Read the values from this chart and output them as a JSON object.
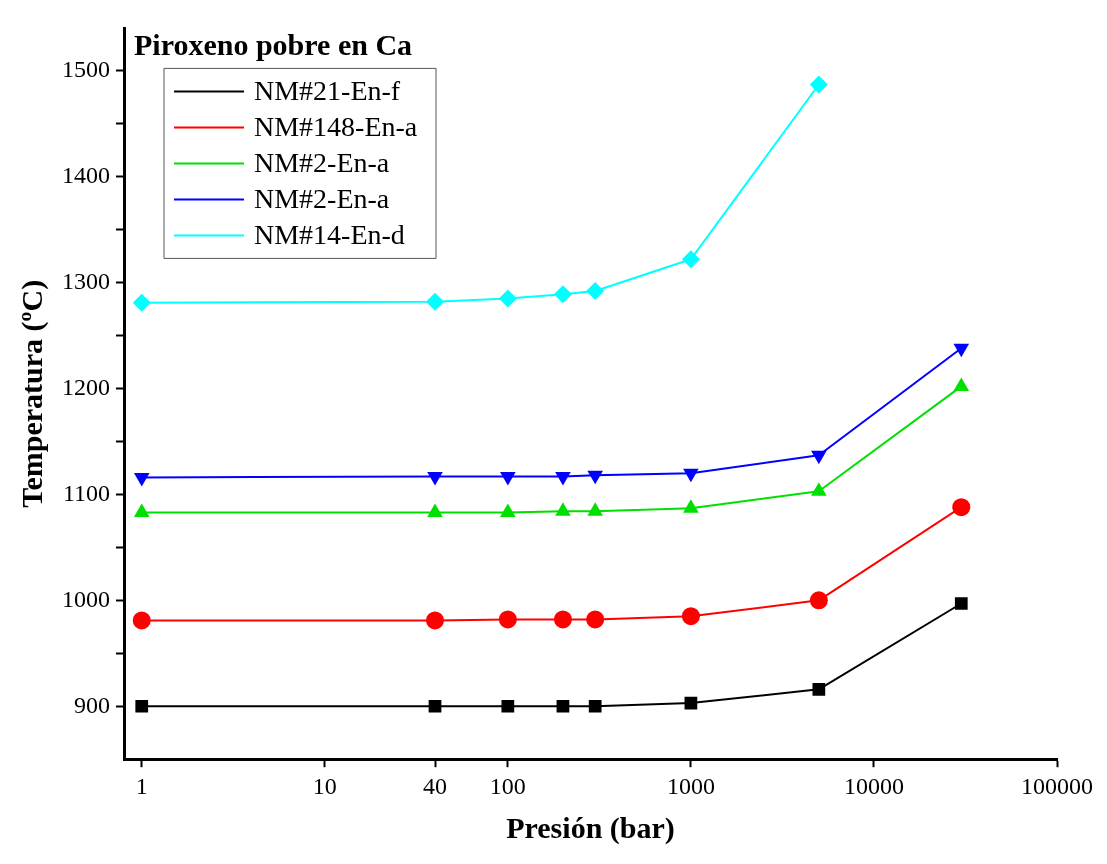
{
  "chart_data": {
    "type": "line",
    "title": "Piroxeno pobre en Ca",
    "xlabel": "Presión (bar)",
    "ylabel": "Temperatura (ºC)",
    "log": "x",
    "xlim": [
      0.8,
      100000
    ],
    "xticks": [
      1,
      10,
      40,
      100,
      1000,
      10000,
      100000
    ],
    "ylim": [
      850,
      1540
    ],
    "yticks": [
      {
        "value": 900,
        "label": "900"
      },
      {
        "value": 950,
        "label": null
      },
      {
        "value": 1000,
        "label": "1000"
      },
      {
        "value": 1050,
        "label": null
      },
      {
        "value": 1100,
        "label": "1100"
      },
      {
        "value": 1150,
        "label": null
      },
      {
        "value": 1200,
        "label": "1200"
      },
      {
        "value": 1250,
        "label": null
      },
      {
        "value": 1300,
        "label": "1300"
      },
      {
        "value": 1350,
        "label": null
      },
      {
        "value": 1400,
        "label": "1400"
      },
      {
        "value": 1450,
        "label": null
      },
      {
        "value": 1500,
        "label": "1500"
      }
    ],
    "grid": false,
    "legend": "top left",
    "line_style": "solid",
    "x": [
      1,
      40,
      100,
      200,
      300,
      1000,
      5000,
      30000
    ],
    "series": [
      {
        "name": "NM#21-En-f",
        "color": "#000000",
        "marker": "square",
        "values": [
          900,
          900,
          900,
          900,
          900,
          903,
          916,
          997
        ]
      },
      {
        "name": "NM#148-En-a",
        "color": "#ff0000",
        "marker": "circle",
        "values": [
          981,
          981,
          982,
          982,
          982,
          985,
          1000,
          1088
        ]
      },
      {
        "name": "NM#2-En-a",
        "color": "#00e000",
        "marker": "triangle",
        "values": [
          1083,
          1083,
          1083,
          1084,
          1084,
          1087,
          1103,
          1202
        ]
      },
      {
        "name": "NM#2-En-a",
        "color": "#0000ff",
        "marker": "triangle-down",
        "values": [
          1116,
          1117,
          1117,
          1117,
          1118,
          1120,
          1137,
          1238
        ]
      },
      {
        "name": "NM#14-En-d",
        "color": "#00ffff",
        "marker": "diamond",
        "x": [
          1,
          40,
          100,
          200,
          300,
          1000,
          5000
        ],
        "values": [
          1281,
          1282,
          1285,
          1289,
          1292,
          1322,
          1487
        ]
      }
    ]
  }
}
